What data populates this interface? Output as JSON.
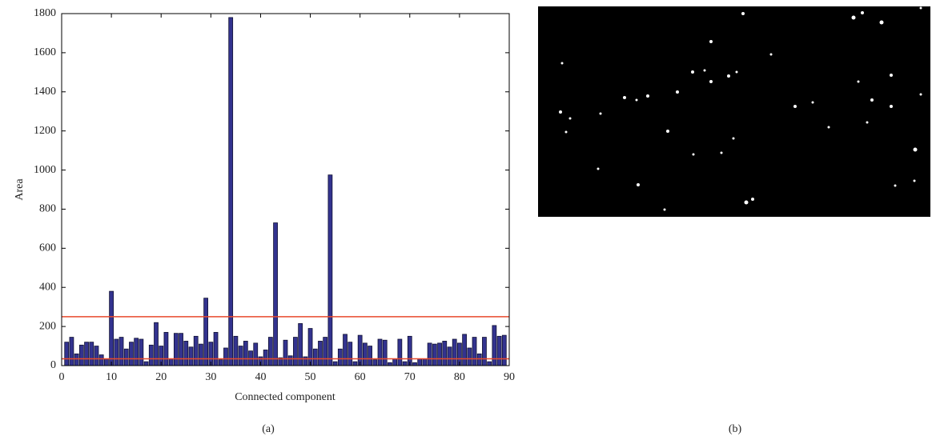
{
  "chart_data": {
    "type": "bar",
    "xlabel": "Connected component",
    "ylabel": "Area",
    "x": [
      1,
      2,
      3,
      4,
      5,
      6,
      7,
      8,
      9,
      10,
      11,
      12,
      13,
      14,
      15,
      16,
      17,
      18,
      19,
      20,
      21,
      22,
      23,
      24,
      25,
      26,
      27,
      28,
      29,
      30,
      31,
      32,
      33,
      34,
      35,
      36,
      37,
      38,
      39,
      40,
      41,
      42,
      43,
      44,
      45,
      46,
      47,
      48,
      49,
      50,
      51,
      52,
      53,
      54,
      55,
      56,
      57,
      58,
      59,
      60,
      61,
      62,
      63,
      64,
      65,
      66,
      67,
      68,
      69,
      70,
      71,
      72,
      73,
      74,
      75,
      76,
      77,
      78,
      79,
      80,
      81,
      82,
      83,
      84,
      85,
      86,
      87,
      88,
      89
    ],
    "values": [
      120,
      145,
      60,
      105,
      120,
      120,
      100,
      55,
      35,
      380,
      135,
      145,
      85,
      120,
      140,
      135,
      20,
      105,
      220,
      100,
      170,
      35,
      165,
      165,
      125,
      95,
      150,
      110,
      345,
      120,
      170,
      30,
      90,
      1780,
      150,
      100,
      125,
      75,
      115,
      45,
      80,
      145,
      730,
      40,
      130,
      50,
      145,
      215,
      45,
      190,
      85,
      125,
      145,
      975,
      20,
      85,
      160,
      120,
      20,
      155,
      115,
      100,
      30,
      135,
      130,
      15,
      35,
      135,
      20,
      150,
      15,
      35,
      35,
      115,
      110,
      115,
      125,
      95,
      135,
      115,
      160,
      90,
      145,
      60,
      145,
      20,
      205,
      150,
      155
    ],
    "color": "#33338f",
    "hlines": [
      250,
      35
    ],
    "hline_color": "#e8492c",
    "xlim": [
      0,
      90
    ],
    "xticks": [
      0,
      10,
      20,
      30,
      40,
      50,
      60,
      70,
      80,
      90
    ],
    "ylim": [
      0,
      1800
    ],
    "yticks": [
      0,
      200,
      400,
      600,
      800,
      1000,
      1200,
      1400,
      1600,
      1800
    ]
  },
  "captions": [
    "(a)",
    "(b)"
  ]
}
